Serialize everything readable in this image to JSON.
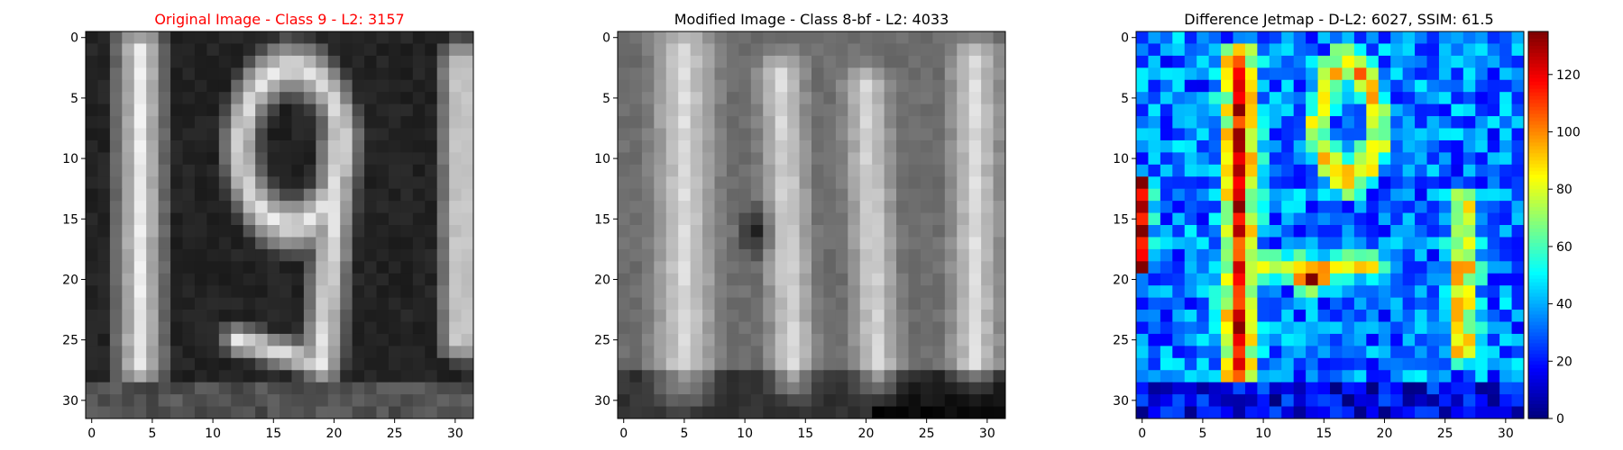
{
  "chart_data": [
    {
      "type": "heatmap",
      "title": "Original Image - Class 9 - L2: 3157",
      "title_color": "#ff0000",
      "colormap": "gray",
      "value_range": [
        0,
        255
      ],
      "shape": [
        32,
        32
      ],
      "x_ticks": [
        0,
        5,
        10,
        15,
        20,
        25,
        30
      ],
      "y_ticks": [
        0,
        5,
        10,
        15,
        20,
        25,
        30
      ],
      "xlim": [
        -0.5,
        31.5
      ],
      "ylim": [
        31.5,
        -0.5
      ],
      "content_description": "Grayscale SVHN-style crop showing a bright digit 1 on the left, a large bright digit 9 in the center, and part of another bright digit at the right edge on a dark background."
    },
    {
      "type": "heatmap",
      "title": "Modified Image - Class 8-bf - L2: 4033",
      "title_color": "#000000",
      "colormap": "gray",
      "value_range": [
        0,
        255
      ],
      "shape": [
        32,
        32
      ],
      "x_ticks": [
        0,
        5,
        10,
        15,
        20,
        25,
        30
      ],
      "y_ticks": [
        0,
        5,
        10,
        15,
        20,
        25,
        30
      ],
      "xlim": [
        -0.5,
        31.5
      ],
      "ylim": [
        31.5,
        -0.5
      ],
      "content_description": "Blurry low-contrast grayscale image with bright vertical strokes; a dark blob around columns 10-12, rows 14-18; dark band along the bottom rows."
    },
    {
      "type": "heatmap",
      "title": "Difference Jetmap - D-L2: 6027, SSIM: 61.5",
      "title_color": "#000000",
      "colormap": "jet",
      "value_range": [
        0,
        135
      ],
      "shape": [
        32,
        32
      ],
      "x_ticks": [
        0,
        5,
        10,
        15,
        20,
        25,
        30
      ],
      "y_ticks": [
        0,
        5,
        10,
        15,
        20,
        25,
        30
      ],
      "xlim": [
        -0.5,
        31.5
      ],
      "ylim": [
        31.5,
        -0.5
      ],
      "colorbar": {
        "ticks": [
          0,
          20,
          40,
          60,
          80,
          100,
          120
        ],
        "range": [
          0,
          135
        ]
      },
      "content_description": "Jet-colored absolute difference map: high differences (yellow-red) along a vertical band near column 8, around column 26, in a hot spot near row 20 columns 13-15, and at the left edge rows 12-18; low (blue) elsewhere."
    }
  ]
}
